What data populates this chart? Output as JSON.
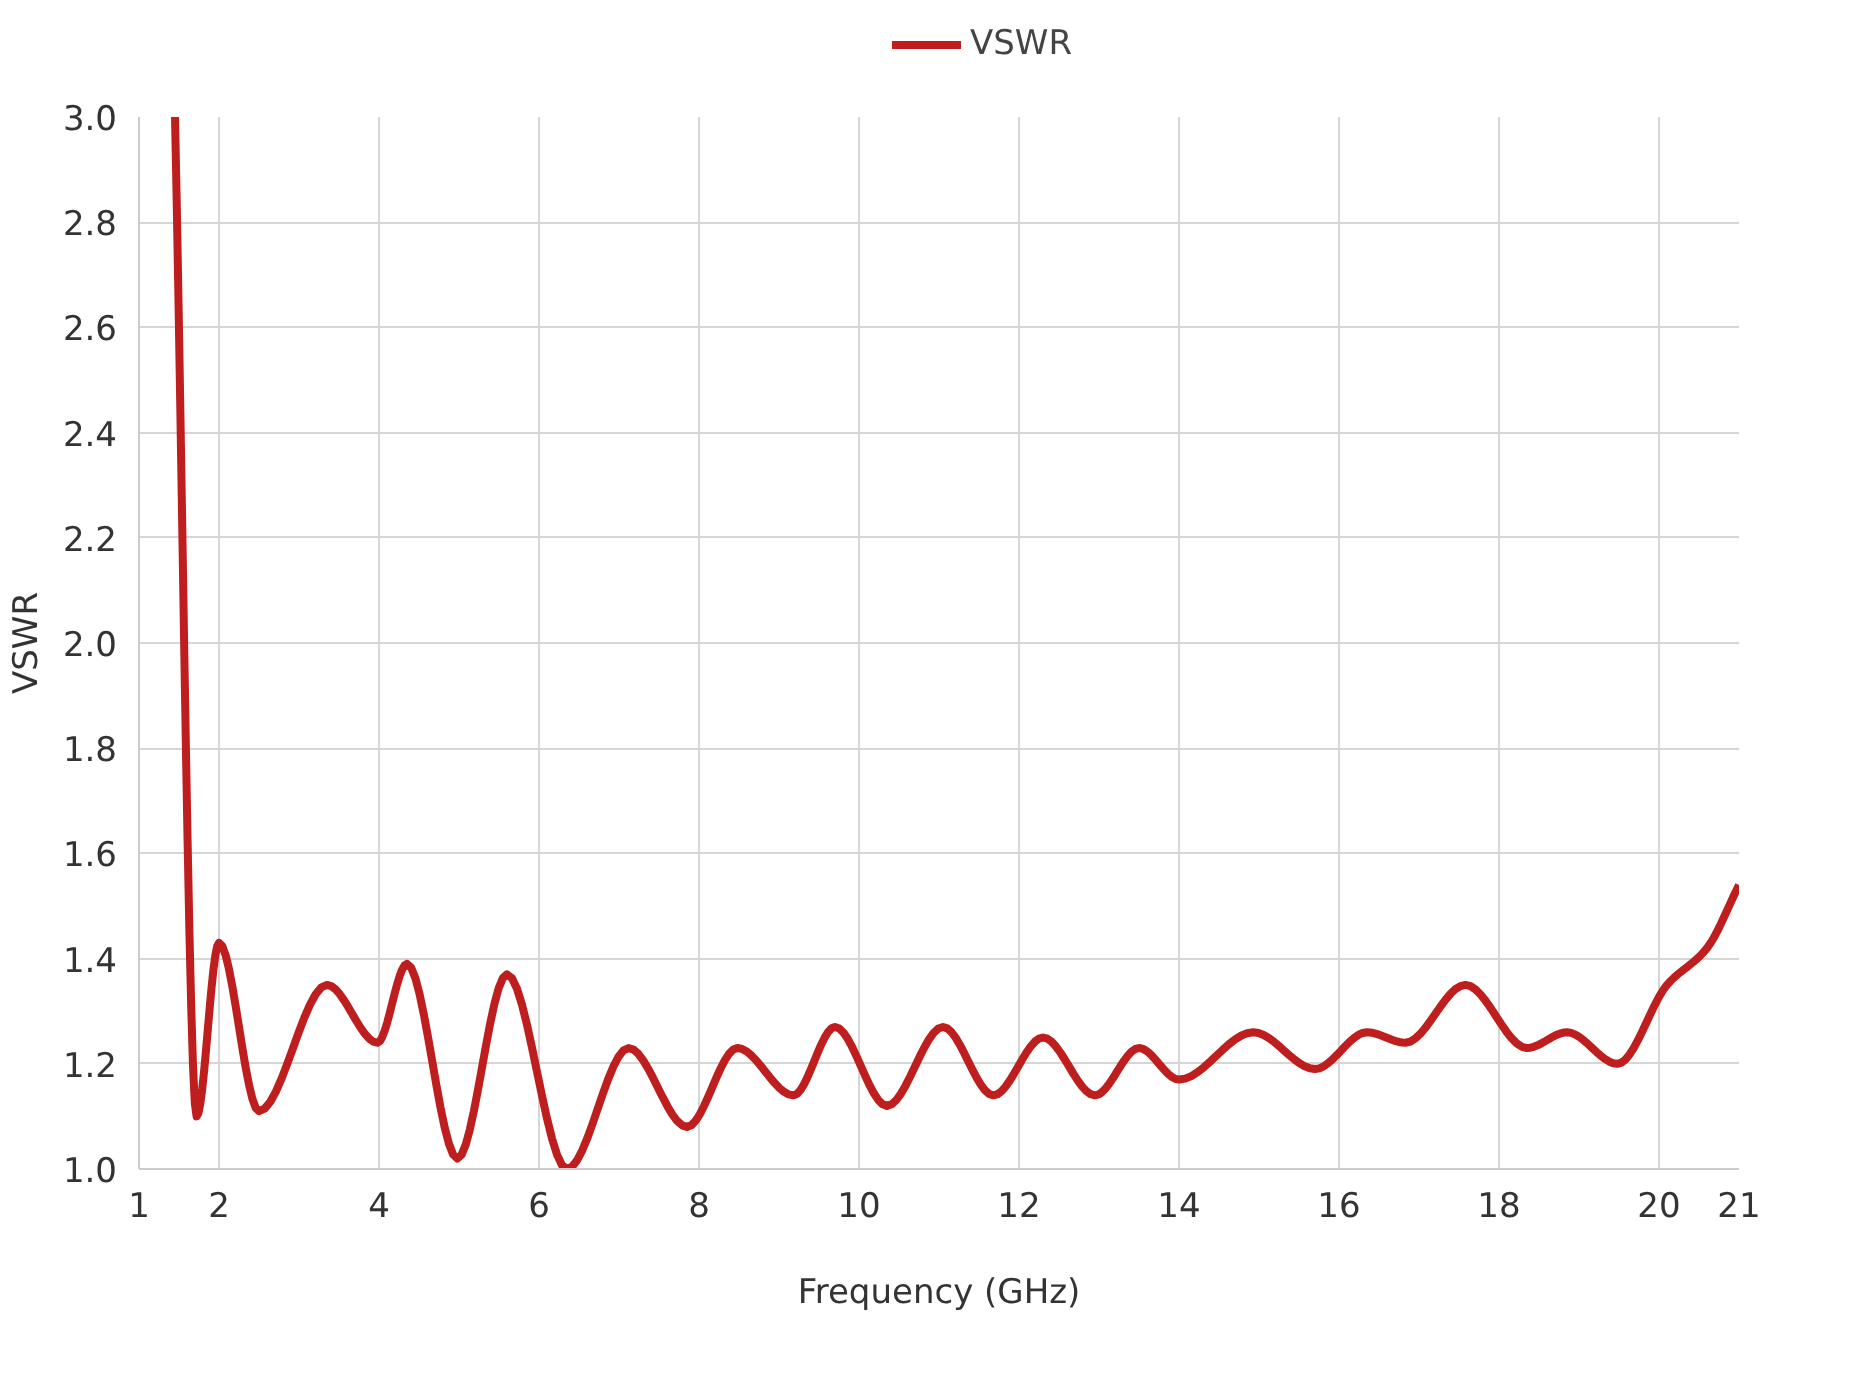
{
  "chart_data": {
    "type": "line",
    "xlabel": "Frequency (GHz)",
    "ylabel": "VSWR",
    "xlim": [
      1,
      21
    ],
    "ylim": [
      1.0,
      3.0
    ],
    "xticks": [
      1,
      2,
      4,
      6,
      8,
      10,
      12,
      14,
      16,
      18,
      20,
      21
    ],
    "yticks": [
      {
        "value": 1.0,
        "label": "1.0"
      },
      {
        "value": 1.2,
        "label": "1.2"
      },
      {
        "value": 1.4,
        "label": "1.4"
      },
      {
        "value": 1.6,
        "label": "1.6"
      },
      {
        "value": 1.8,
        "label": "1.8"
      },
      {
        "value": 2.0,
        "label": "2.0"
      },
      {
        "value": 2.2,
        "label": "2.2"
      },
      {
        "value": 2.4,
        "label": "2.4"
      },
      {
        "value": 2.6,
        "label": "2.6"
      },
      {
        "value": 2.8,
        "label": "2.8"
      },
      {
        "value": 3.0,
        "label": "3.0"
      }
    ],
    "grid": true,
    "legend": "top",
    "marker": "none",
    "line_style": "solid",
    "series": [
      {
        "name": "VSWR",
        "color": "#be1e1e",
        "x": [
          1.45,
          1.72,
          2.0,
          2.5,
          3.35,
          3.98,
          4.35,
          4.98,
          5.6,
          6.35,
          7.12,
          7.85,
          8.48,
          9.18,
          9.7,
          10.35,
          11.05,
          11.68,
          12.3,
          12.95,
          13.5,
          14.0,
          14.93,
          15.7,
          16.35,
          16.83,
          17.58,
          18.35,
          18.85,
          19.48,
          20.1,
          20.6,
          21.0
        ],
        "values": [
          3.0,
          1.1,
          1.43,
          1.11,
          1.35,
          1.24,
          1.39,
          1.02,
          1.37,
          1.0,
          1.23,
          1.08,
          1.23,
          1.14,
          1.27,
          1.12,
          1.27,
          1.14,
          1.25,
          1.14,
          1.23,
          1.17,
          1.26,
          1.19,
          1.26,
          1.24,
          1.35,
          1.23,
          1.26,
          1.2,
          1.35,
          1.42,
          1.54
        ]
      }
    ]
  }
}
